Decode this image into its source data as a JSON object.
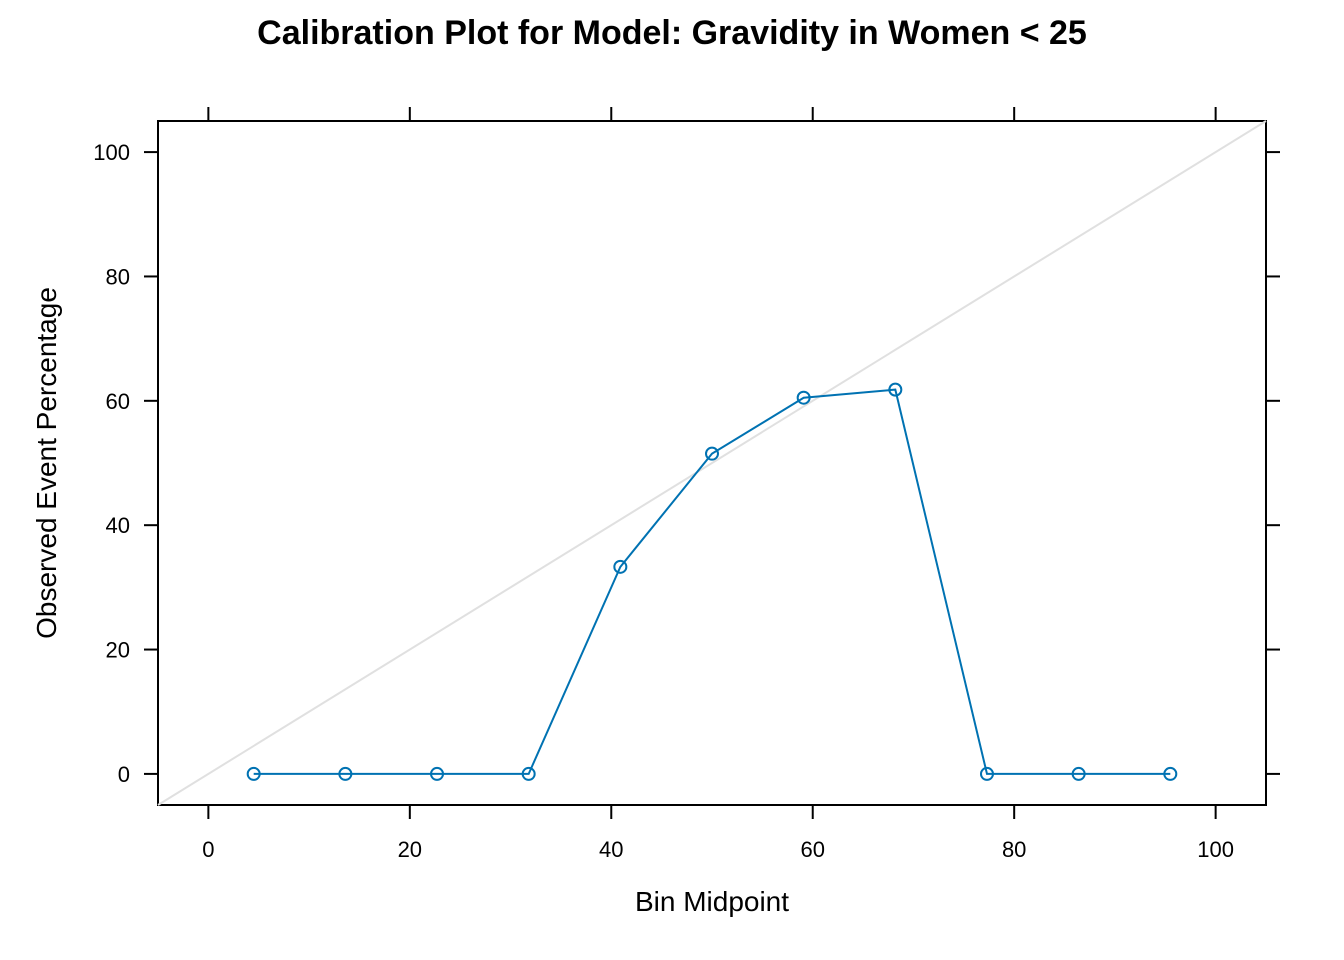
{
  "chart_data": {
    "type": "line",
    "title": "Calibration Plot for Model: Gravidity in Women < 25",
    "xlabel": "Bin Midpoint",
    "ylabel": "Observed Event Percentage",
    "xlim": [
      -5,
      105
    ],
    "ylim": [
      -5,
      105
    ],
    "x_ticks": [
      0,
      20,
      40,
      60,
      80,
      100
    ],
    "y_ticks": [
      0,
      20,
      40,
      60,
      80,
      100
    ],
    "x_tick_labels": [
      "0",
      "20",
      "40",
      "60",
      "80",
      "100"
    ],
    "y_tick_labels": [
      "0",
      "20",
      "40",
      "60",
      "80",
      "100"
    ],
    "grid": false,
    "reference_line": {
      "from": [
        -5,
        -5
      ],
      "to": [
        105,
        105
      ],
      "color": "#e0e0e0"
    },
    "series": [
      {
        "color": "#0072B2",
        "marker": "open-circle",
        "x": [
          4.5,
          13.6,
          22.7,
          31.8,
          40.9,
          50.0,
          59.1,
          68.2,
          77.3,
          86.4,
          95.5
        ],
        "y": [
          0,
          0,
          0,
          0,
          33.3,
          51.5,
          60.5,
          61.8,
          0,
          0,
          0
        ]
      }
    ]
  }
}
